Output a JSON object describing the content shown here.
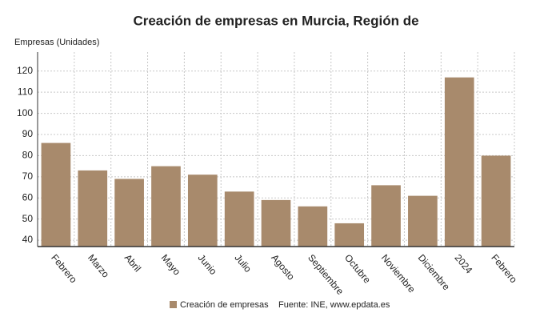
{
  "chart_data": {
    "type": "bar",
    "title": "Creación de empresas en Murcia, Región de",
    "y_label": "Empresas (Unidades)",
    "categories": [
      "Febrero",
      "Marzo",
      "Abril",
      "Mayo",
      "Junio",
      "Julio",
      "Agosto",
      "Septiembre",
      "Octubre",
      "Noviembre",
      "Diciembre",
      "2024",
      "Febrero"
    ],
    "series": [
      {
        "name": "Creación de empresas",
        "color": "#a88a6c",
        "values": [
          86,
          73,
          69,
          75,
          71,
          63,
          59,
          56,
          48,
          66,
          61,
          117,
          80
        ]
      }
    ],
    "ylim": [
      37,
      129
    ],
    "yticks": [
      40,
      50,
      60,
      70,
      80,
      90,
      100,
      110,
      120
    ],
    "grid": true,
    "source": "Fuente: INE, www.epdata.es"
  }
}
